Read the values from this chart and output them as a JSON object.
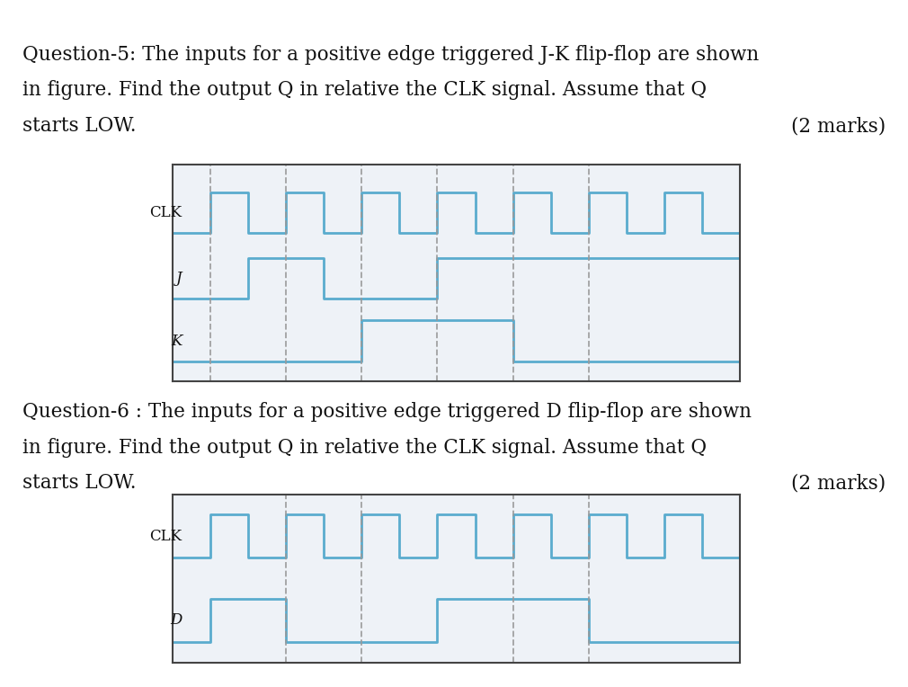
{
  "bg_color": "#eef2f7",
  "signal_color": "#5aacce",
  "dashed_color": "#999999",
  "text_color": "#111111",
  "q5_line1": "Question-5: The inputs for a positive edge triggered J-K flip-flop are shown",
  "q5_line2": "in figure. Find the output Q in relative the CLK signal. Assume that Q",
  "q5_line3": "starts LOW.",
  "q5_marks": "(2 marks)",
  "q6_line1": "Question-6 : The inputs for a positive edge triggered D flip-flop are shown",
  "q6_line2": "in figure. Find the output Q in relative the CLK signal. Assume that Q",
  "q6_line3": "starts LOW.",
  "q6_marks": "(2 marks)",
  "clk_label": "CLK",
  "j_label": "J",
  "k_label": "K",
  "d_label": "D",
  "font_size_text": 15.5,
  "font_size_label": 12,
  "signal_lw": 2.0,
  "dashed_lw": 1.3,
  "q5_clk_transitions": [
    0,
    0,
    1,
    1,
    2,
    0,
    3,
    1,
    4,
    0,
    5,
    1,
    6,
    0,
    7,
    1,
    8,
    0,
    9,
    1,
    10,
    0,
    11,
    1,
    12,
    0,
    13,
    1,
    14,
    0,
    15,
    0
  ],
  "q5_j_transitions": [
    0,
    0,
    2,
    1,
    4,
    0,
    7,
    1,
    15,
    1
  ],
  "q5_k_transitions": [
    0,
    0,
    5,
    1,
    9,
    0,
    15,
    0
  ],
  "q5_dashed": [
    1,
    3,
    5,
    7,
    9,
    11
  ],
  "q6_clk_transitions": [
    0,
    0,
    1,
    1,
    2,
    0,
    3,
    1,
    4,
    0,
    5,
    1,
    6,
    0,
    7,
    1,
    8,
    0,
    9,
    1,
    10,
    0,
    11,
    1,
    12,
    0,
    13,
    1,
    14,
    0,
    15,
    0
  ],
  "q6_d_transitions": [
    0,
    0,
    1,
    1,
    3,
    0,
    7,
    1,
    11,
    0,
    15,
    0
  ],
  "q6_dashed": [
    3,
    5,
    9,
    11
  ]
}
